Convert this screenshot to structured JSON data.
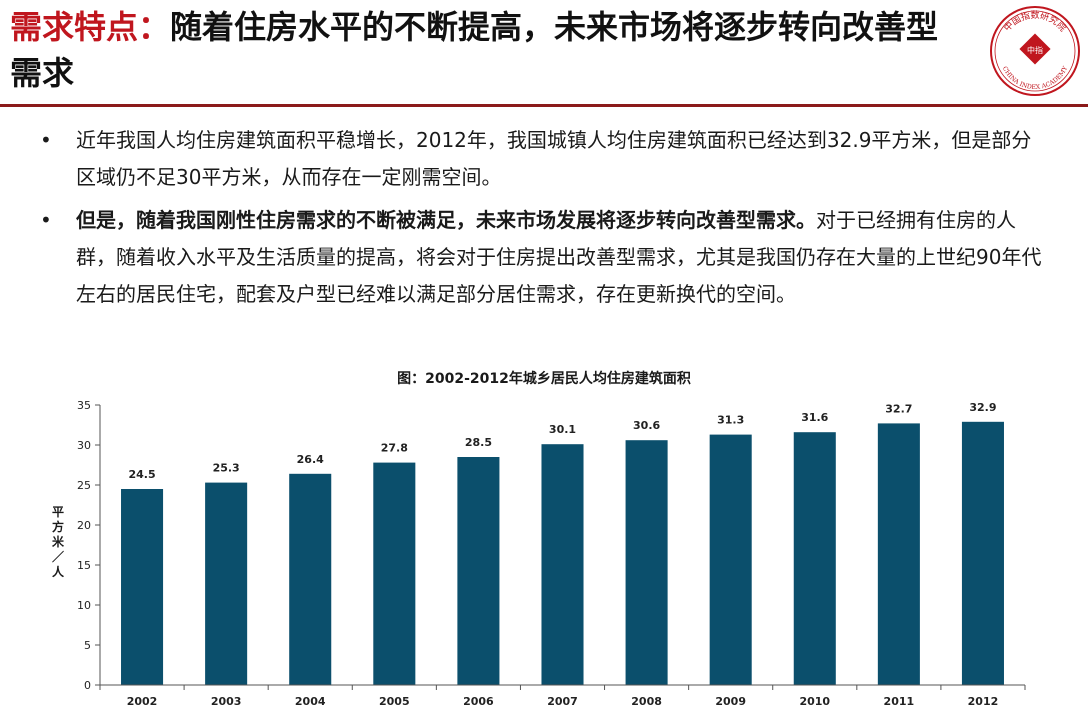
{
  "header": {
    "title_lead": "需求特点：",
    "title_rest": "随着住房水平的不断提高，未来市场将逐步转向改善型需求",
    "logo": {
      "icon": "china-index-academy-seal",
      "arc_text": "中国指数研究院",
      "center_text": "中指",
      "english_text": "CHINA INDEX ACADEMY",
      "color": "#c0161e"
    }
  },
  "bullets": [
    {
      "marker": "•",
      "bold": "",
      "text": "近年我国人均住房建筑面积平稳增长，2012年，我国城镇人均住房建筑面积已经达到32.9平方米，但是部分区域仍不足30平方米，从而存在一定刚需空间。"
    },
    {
      "marker": "•",
      "bold": "但是，随着我国刚性住房需求的不断被满足，未来市场发展将逐步转向改善型需求。",
      "text": "对于已经拥有住房的人群，随着收入水平及生活质量的提高，将会对于住房提出改善型需求，尤其是我国仍存在大量的上世纪90年代左右的居民住宅，配套及户型已经难以满足部分居住需求，存在更新换代的空间。"
    }
  ],
  "chart_data": {
    "type": "bar",
    "title": "图：2002-2012年城乡居民人均住房建筑面积",
    "ylabel": "平方米／人",
    "xlabel": "",
    "categories": [
      "2002",
      "2003",
      "2004",
      "2005",
      "2006",
      "2007",
      "2008",
      "2009",
      "2010",
      "2011",
      "2012"
    ],
    "values": [
      24.5,
      25.3,
      26.4,
      27.8,
      28.5,
      30.1,
      30.6,
      31.3,
      31.6,
      32.7,
      32.9
    ],
    "data_labels": [
      "24.5",
      "25.3",
      "26.4",
      "27.8",
      "28.5",
      "30.1",
      "30.6",
      "31.3",
      "31.6",
      "32.7",
      "32.9"
    ],
    "ylim": [
      0,
      35
    ],
    "yticks": [
      0,
      5,
      10,
      15,
      20,
      25,
      30,
      35
    ],
    "grid": false,
    "legend": "none",
    "bar_color": "#0b4f6c"
  }
}
